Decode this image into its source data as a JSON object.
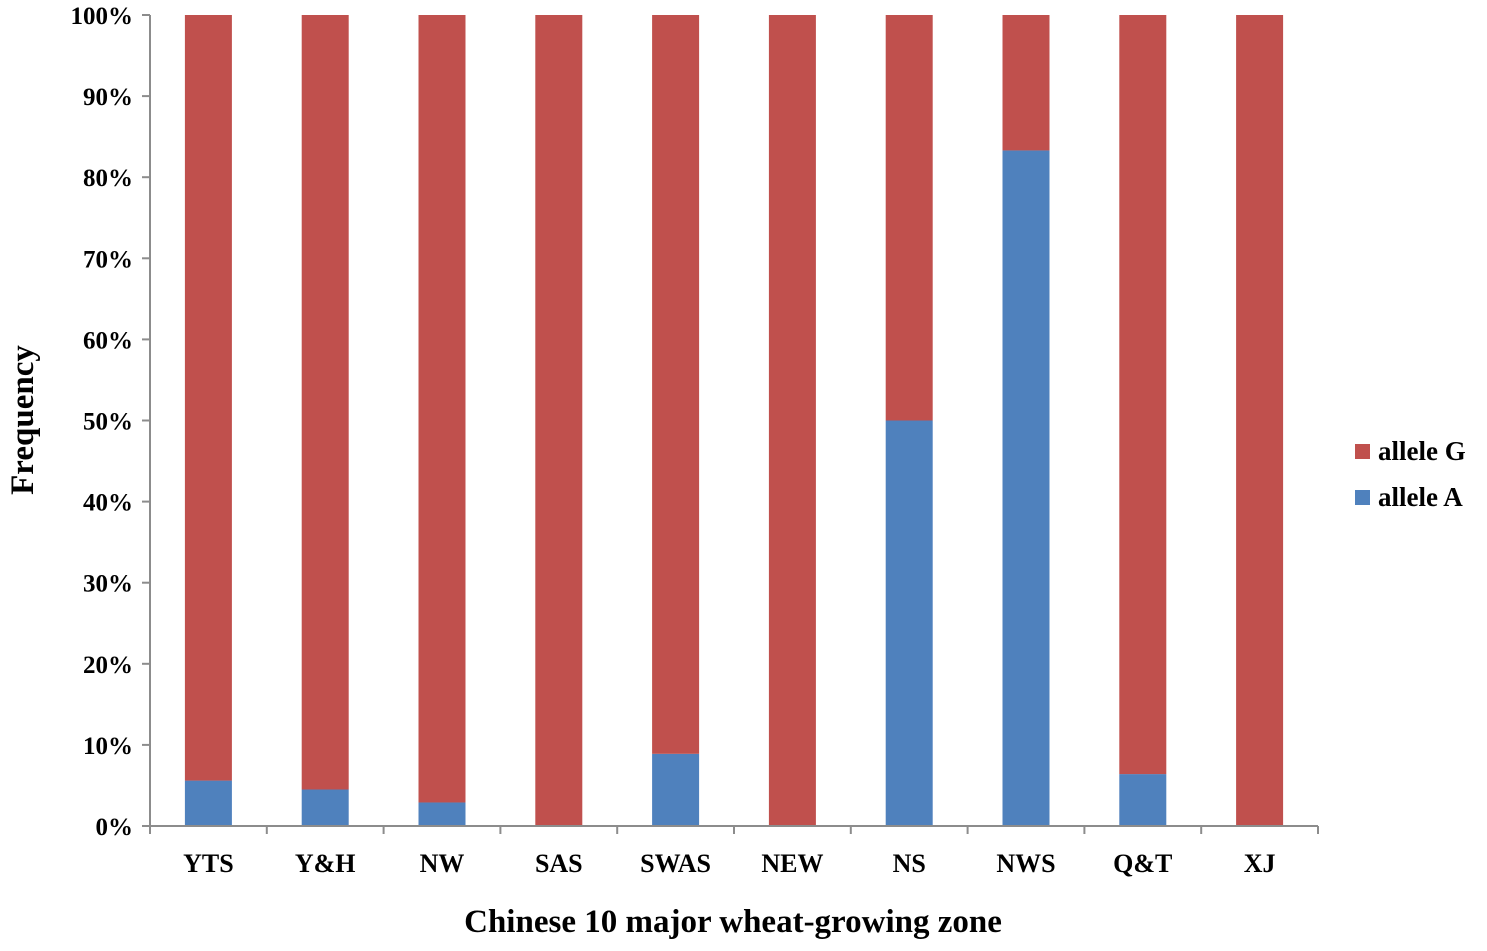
{
  "chart_data": {
    "type": "bar",
    "stacked": true,
    "xlabel": "Chinese 10 major wheat-growing zone",
    "ylabel": "Frequency",
    "categories": [
      "YTS",
      "Y&H",
      "NW",
      "SAS",
      "SWAS",
      "NEW",
      "NS",
      "NWS",
      "Q&T",
      "XJ"
    ],
    "ylim": [
      0,
      100
    ],
    "y_ticks": [
      "0%",
      "10%",
      "20%",
      "30%",
      "40%",
      "50%",
      "60%",
      "70%",
      "80%",
      "90%",
      "100%"
    ],
    "grid": false,
    "legend_position": "right",
    "series": [
      {
        "name": "allele A",
        "color": "#4f81bd",
        "values": [
          5.6,
          4.5,
          2.9,
          0,
          8.9,
          0,
          50,
          83.3,
          6.4,
          0
        ]
      },
      {
        "name": "allele G",
        "color": "#c0504d",
        "values": [
          94.4,
          95.5,
          97.1,
          100,
          91.1,
          100,
          50,
          16.7,
          93.6,
          100
        ]
      }
    ],
    "legend": [
      {
        "name": "allele G",
        "color": "#c0504d"
      },
      {
        "name": "allele A",
        "color": "#4f81bd"
      }
    ]
  }
}
